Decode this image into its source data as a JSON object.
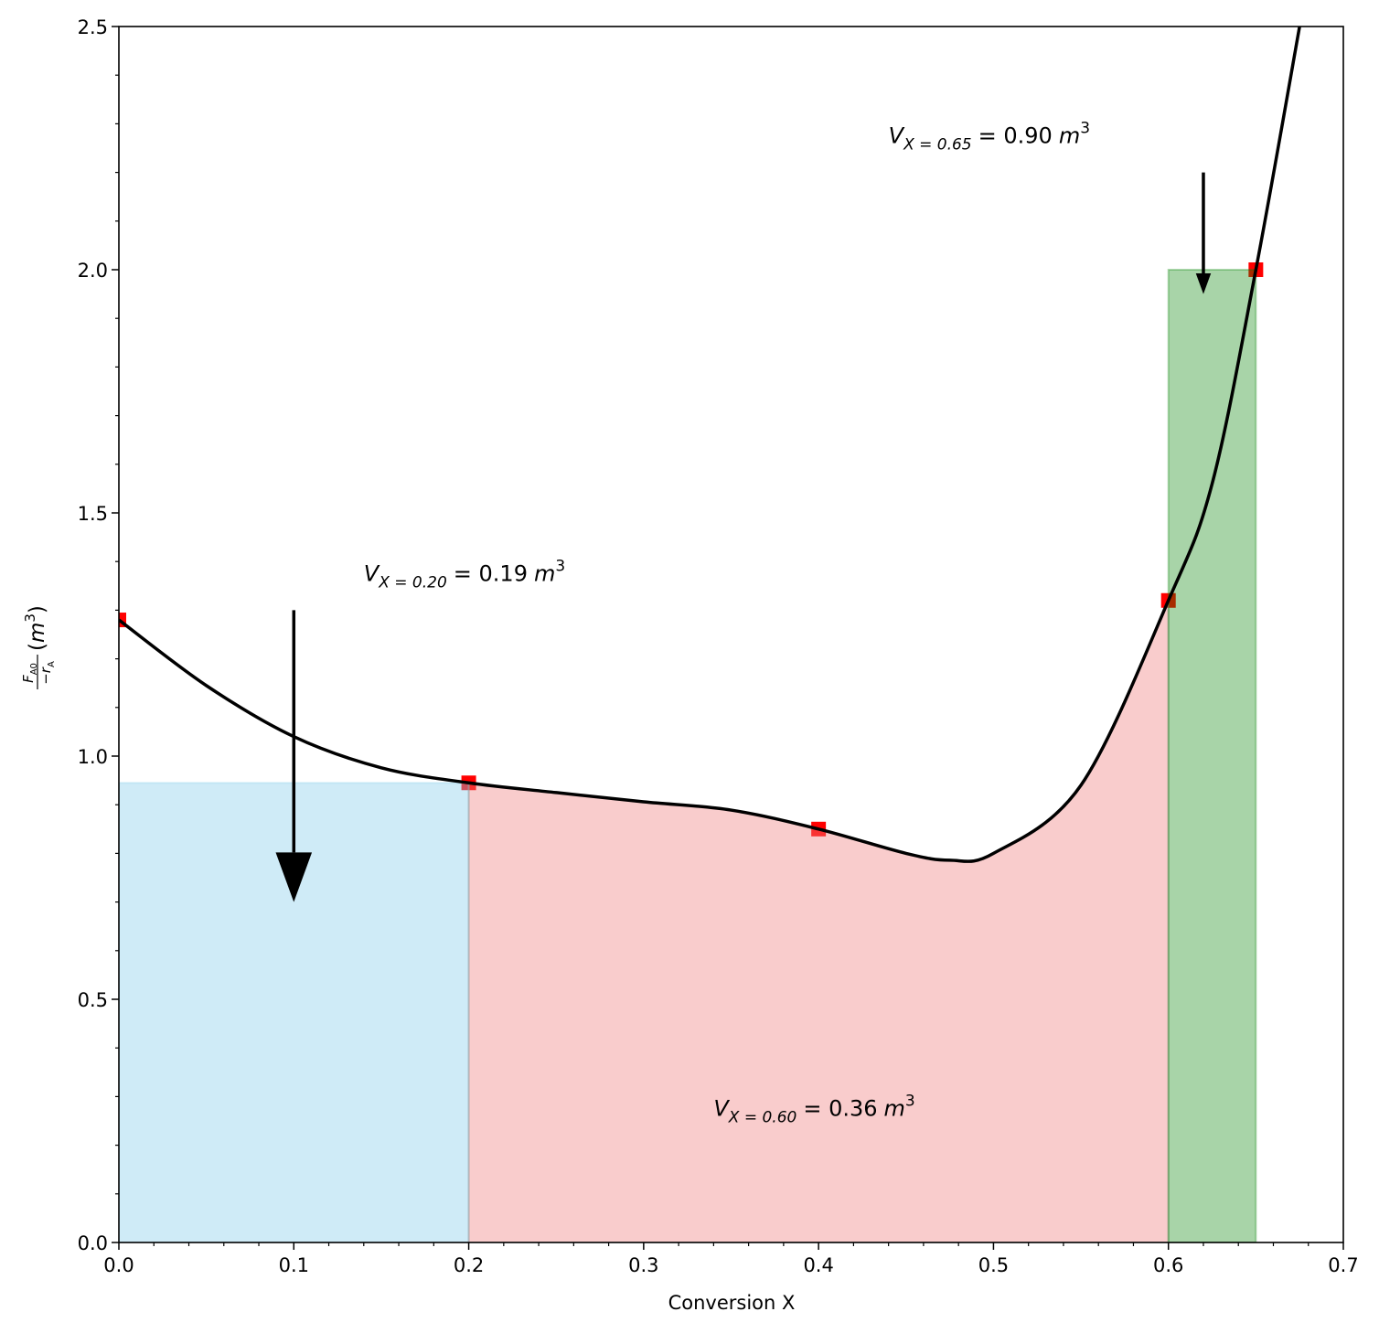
{
  "chart_data": {
    "type": "line",
    "xlabel": "Conversion X",
    "ylabel": {
      "numerator": "F",
      "numerator_sub": "A0",
      "denominator": "−r",
      "denominator_sub": "A",
      "unit_open": "(",
      "unit": "m",
      "unit_sup": "3",
      "unit_close": ")"
    },
    "xlim": [
      0,
      0.7
    ],
    "ylim": [
      0,
      2.5
    ],
    "xticks": [
      {
        "value": 0,
        "label": "0.0"
      },
      0.1,
      0.2,
      0.3,
      0.4,
      0.5,
      0.6,
      0.7
    ],
    "yticks": [
      {
        "value": 0,
        "label": "0.0"
      },
      0.5,
      {
        "value": 1,
        "label": "1.0"
      },
      1.5,
      {
        "value": 2,
        "label": "2.0"
      },
      2.5
    ],
    "xminorticks": [
      0.02,
      0.04,
      0.06,
      0.08,
      0.12,
      0.14,
      0.16,
      0.18,
      0.22,
      0.24,
      0.26,
      0.28,
      0.32,
      0.34,
      0.36,
      0.38,
      0.42,
      0.44,
      0.46,
      0.48,
      0.52,
      0.54,
      0.56,
      0.58,
      0.62,
      0.64,
      0.66,
      0.68
    ],
    "yminorticks": [
      0.1,
      0.2,
      0.3,
      0.4,
      0.6,
      0.7,
      0.8,
      0.9,
      1.1,
      1.2,
      1.3,
      1.4,
      1.6,
      1.7,
      1.8,
      1.9,
      2.1,
      2.2,
      2.3,
      2.4
    ],
    "series": [
      {
        "kind": "scatter",
        "marker": "square",
        "color": "#ff0000",
        "x": [
          0,
          0.2,
          0.4,
          0.6,
          0.65
        ],
        "values": [
          1.28,
          0.945,
          0.85,
          1.32,
          2.0
        ]
      },
      {
        "kind": "line",
        "color": "#000000",
        "x": [
          0,
          0.05,
          0.1,
          0.15,
          0.2,
          0.25,
          0.3,
          0.35,
          0.4,
          0.45,
          0.475,
          0.5,
          0.55,
          0.6,
          0.625,
          0.65,
          0.675
        ],
        "values": [
          1.28,
          1.145,
          1.04,
          0.976,
          0.945,
          0.925,
          0.906,
          0.889,
          0.85,
          0.8,
          0.786,
          0.8,
          0.94,
          1.32,
          1.56,
          2.0,
          2.5
        ]
      }
    ],
    "regions": [
      {
        "shape": "rect",
        "x": [
          0,
          0.2
        ],
        "height": 0.945,
        "color": "#87ceeb"
      },
      {
        "shape": "under_curve",
        "x": [
          0.2,
          0.6
        ],
        "color": "#f08080"
      },
      {
        "shape": "rect",
        "x": [
          0.6,
          0.65
        ],
        "height": 2.0,
        "color": "#008000"
      }
    ],
    "annotations": [
      {
        "x": 0.14,
        "y": 1.36,
        "var": "V",
        "sub": "X = 0.20",
        "text": "= 0.19",
        "unit": "m",
        "sup": "3"
      },
      {
        "x": 0.44,
        "y": 2.26,
        "var": "V",
        "sub": "X = 0.65",
        "text": "= 0.90",
        "unit": "m",
        "sup": "3"
      },
      {
        "x": 0.34,
        "y": 0.26,
        "var": "V",
        "sub": "X = 0.60",
        "text": "= 0.36",
        "unit": "m",
        "sup": "3"
      }
    ],
    "arrows": [
      {
        "x": 0.1,
        "y": [
          1.3,
          0.7
        ]
      },
      {
        "x": 0.62,
        "y": [
          2.2,
          1.95
        ]
      }
    ]
  }
}
